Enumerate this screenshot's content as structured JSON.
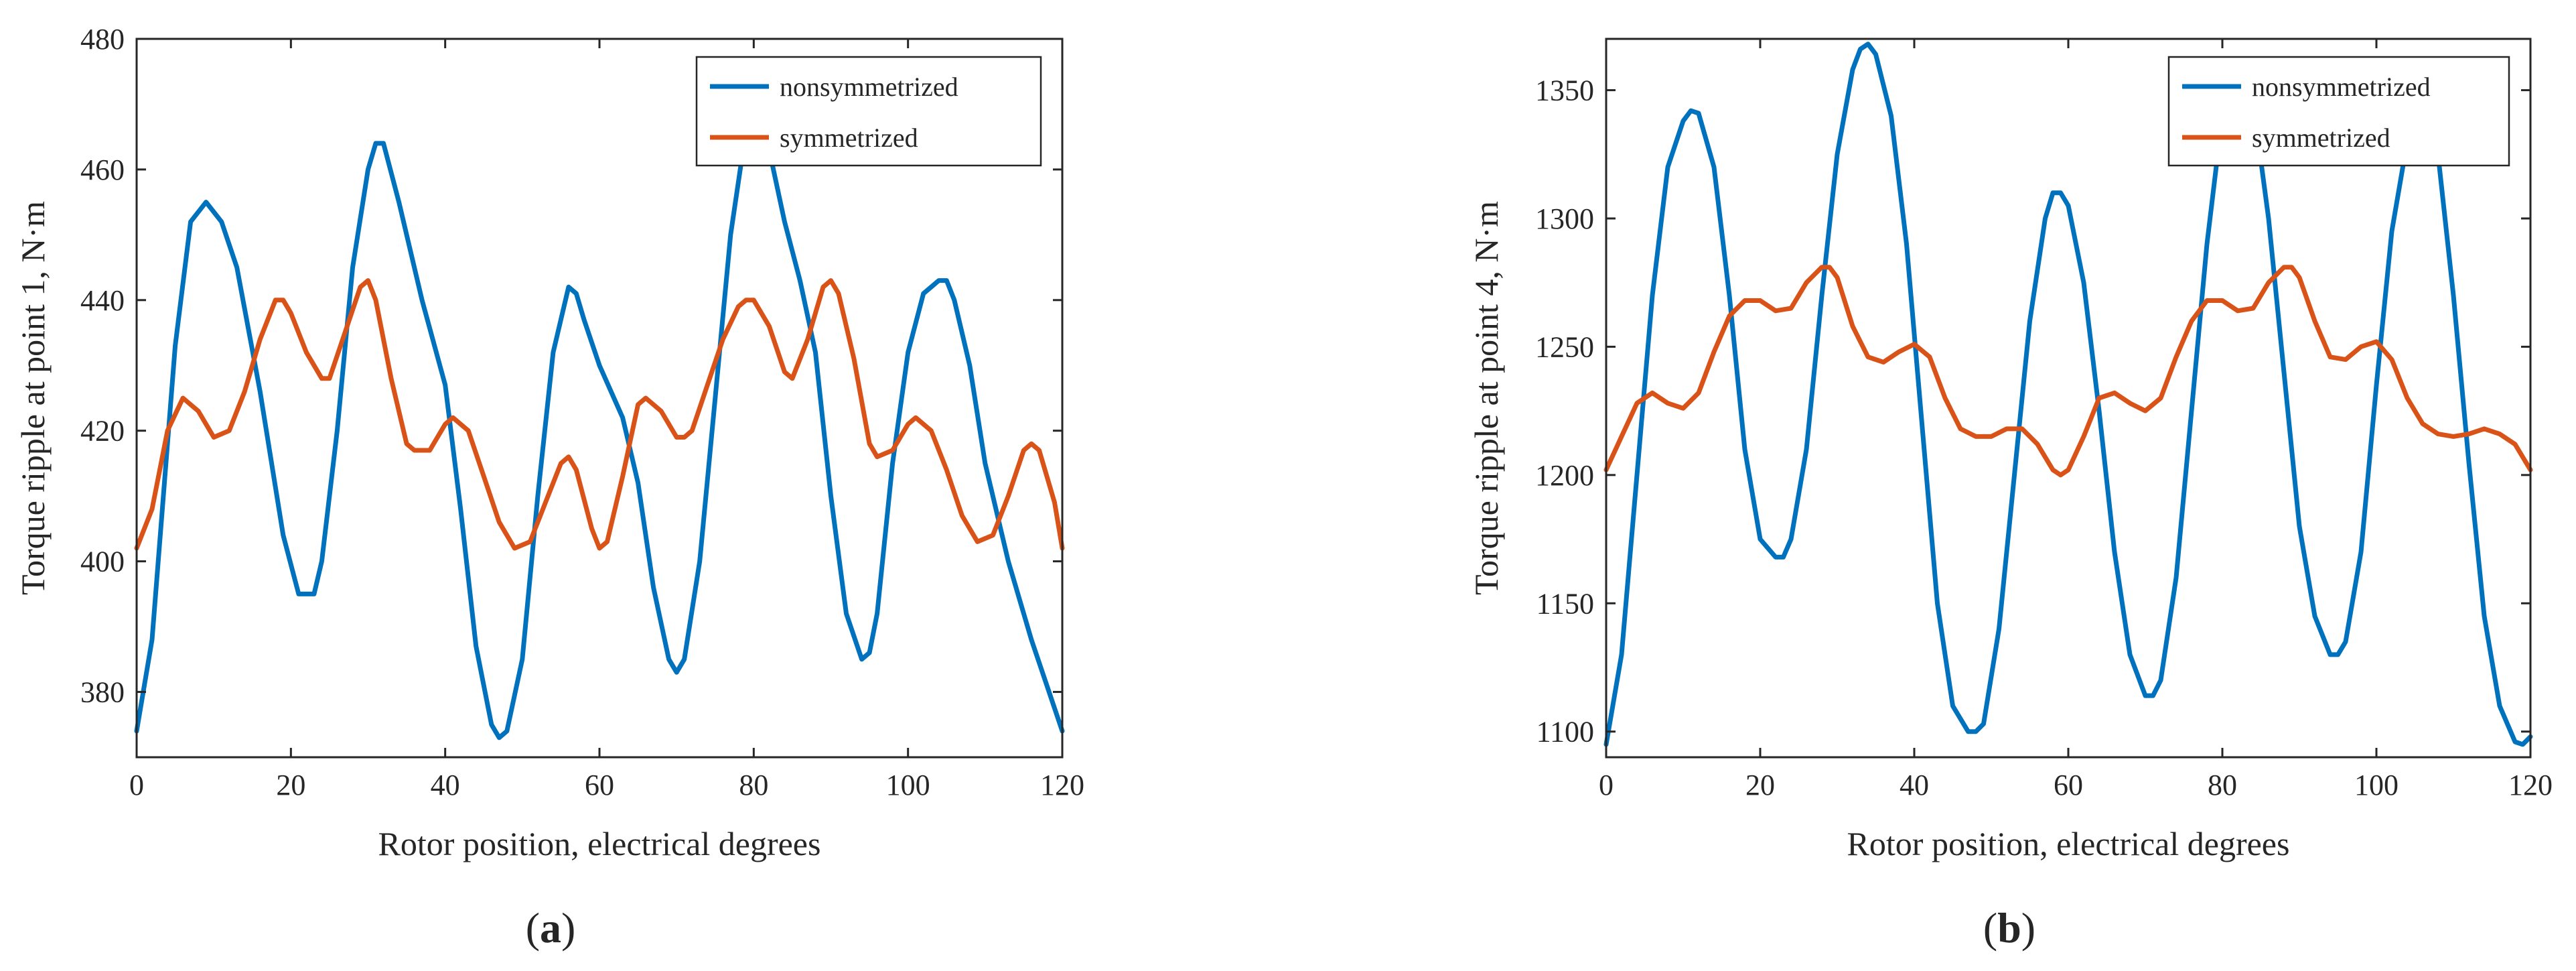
{
  "figure": {
    "panels": [
      {
        "label_open": "(",
        "label_letter": "a",
        "label_close": ")"
      },
      {
        "label_open": "(",
        "label_letter": "b",
        "label_close": ")"
      }
    ]
  },
  "chart_data": [
    {
      "type": "line",
      "xlabel": "Rotor position, electrical degrees",
      "ylabel": "Torque ripple at point 1, N·m",
      "xlim": [
        0,
        120
      ],
      "ylim": [
        370,
        480
      ],
      "xticks": [
        0,
        20,
        40,
        60,
        80,
        100,
        120
      ],
      "yticks": [
        380,
        400,
        420,
        440,
        460,
        480
      ],
      "grid": false,
      "legend_position": "top-right",
      "series": [
        {
          "name": "nonsymmetrized",
          "color": "#0072BD",
          "x": [
            0,
            2,
            5,
            7,
            9,
            11,
            13,
            16,
            19,
            21,
            23,
            24,
            26,
            28,
            30,
            31,
            32,
            34,
            37,
            40,
            42,
            44,
            46,
            47,
            48,
            50,
            52,
            54,
            56,
            57,
            58,
            60,
            63,
            65,
            67,
            69,
            70,
            71,
            73,
            75,
            77,
            79,
            81,
            82,
            84,
            86,
            88,
            90,
            92,
            94,
            95,
            96,
            98,
            100,
            102,
            104,
            105,
            106,
            108,
            110,
            113,
            116,
            120
          ],
          "y": [
            374,
            388,
            433,
            452,
            455,
            452,
            445,
            426,
            404,
            395,
            395,
            400,
            420,
            445,
            460,
            464,
            464,
            455,
            440,
            427,
            408,
            387,
            375,
            373,
            374,
            385,
            410,
            432,
            442,
            441,
            437,
            430,
            422,
            412,
            396,
            385,
            383,
            385,
            400,
            425,
            450,
            466,
            468,
            463,
            452,
            443,
            432,
            410,
            392,
            385,
            386,
            392,
            415,
            432,
            441,
            443,
            443,
            440,
            430,
            415,
            400,
            388,
            374
          ]
        },
        {
          "name": "symmetrized",
          "color": "#D95319",
          "x": [
            0,
            2,
            4,
            6,
            8,
            10,
            12,
            14,
            16,
            18,
            19,
            20,
            22,
            24,
            25,
            27,
            29,
            30,
            31,
            33,
            35,
            36,
            38,
            40,
            41,
            43,
            45,
            47,
            49,
            51,
            53,
            55,
            56,
            57,
            59,
            60,
            61,
            63,
            65,
            66,
            68,
            70,
            71,
            72,
            74,
            76,
            78,
            79,
            80,
            82,
            84,
            85,
            87,
            89,
            90,
            91,
            93,
            95,
            96,
            98,
            100,
            101,
            103,
            105,
            107,
            109,
            111,
            113,
            115,
            116,
            117,
            119,
            120
          ],
          "y": [
            402,
            408,
            420,
            425,
            423,
            419,
            420,
            426,
            434,
            440,
            440,
            438,
            432,
            428,
            428,
            435,
            442,
            443,
            440,
            428,
            418,
            417,
            417,
            421,
            422,
            420,
            413,
            406,
            402,
            403,
            409,
            415,
            416,
            414,
            405,
            402,
            403,
            413,
            424,
            425,
            423,
            419,
            419,
            420,
            427,
            434,
            439,
            440,
            440,
            436,
            429,
            428,
            434,
            442,
            443,
            441,
            431,
            418,
            416,
            417,
            421,
            422,
            420,
            414,
            407,
            403,
            404,
            410,
            417,
            418,
            417,
            409,
            402
          ]
        }
      ]
    },
    {
      "type": "line",
      "xlabel": "Rotor position, electrical degrees",
      "ylabel": "Torque ripple at point 4, N·m",
      "xlim": [
        0,
        120
      ],
      "ylim": [
        1090,
        1370
      ],
      "xticks": [
        0,
        20,
        40,
        60,
        80,
        100,
        120
      ],
      "yticks": [
        1100,
        1150,
        1200,
        1250,
        1300,
        1350
      ],
      "grid": false,
      "legend_position": "top-right",
      "series": [
        {
          "name": "nonsymmetrized",
          "color": "#0072BD",
          "x": [
            0,
            2,
            4,
            6,
            8,
            10,
            11,
            12,
            14,
            16,
            18,
            20,
            22,
            23,
            24,
            26,
            28,
            30,
            32,
            33,
            34,
            35,
            37,
            39,
            41,
            43,
            45,
            47,
            48,
            49,
            51,
            53,
            55,
            57,
            58,
            59,
            60,
            62,
            64,
            66,
            68,
            70,
            71,
            72,
            74,
            76,
            78,
            80,
            81,
            82,
            84,
            86,
            88,
            90,
            92,
            94,
            95,
            96,
            98,
            100,
            102,
            104,
            105,
            106,
            108,
            110,
            112,
            114,
            116,
            118,
            119,
            120
          ],
          "y": [
            1095,
            1130,
            1200,
            1270,
            1320,
            1338,
            1342,
            1341,
            1320,
            1270,
            1210,
            1175,
            1168,
            1168,
            1175,
            1210,
            1270,
            1325,
            1358,
            1366,
            1368,
            1364,
            1340,
            1290,
            1220,
            1150,
            1110,
            1100,
            1100,
            1103,
            1140,
            1200,
            1260,
            1300,
            1310,
            1310,
            1305,
            1275,
            1225,
            1170,
            1130,
            1114,
            1114,
            1120,
            1160,
            1225,
            1290,
            1340,
            1355,
            1360,
            1345,
            1300,
            1240,
            1180,
            1145,
            1130,
            1130,
            1135,
            1170,
            1235,
            1295,
            1330,
            1340,
            1340,
            1325,
            1270,
            1205,
            1145,
            1110,
            1096,
            1095,
            1098
          ]
        },
        {
          "name": "symmetrized",
          "color": "#D95319",
          "x": [
            0,
            2,
            4,
            6,
            8,
            10,
            12,
            14,
            16,
            18,
            20,
            22,
            24,
            26,
            28,
            29,
            30,
            32,
            34,
            36,
            38,
            40,
            42,
            44,
            46,
            48,
            50,
            52,
            54,
            56,
            58,
            59,
            60,
            62,
            64,
            66,
            68,
            70,
            72,
            74,
            76,
            78,
            80,
            82,
            84,
            86,
            88,
            89,
            90,
            92,
            94,
            96,
            98,
            100,
            102,
            104,
            106,
            108,
            110,
            112,
            114,
            116,
            118,
            120
          ],
          "y": [
            1202,
            1215,
            1228,
            1232,
            1228,
            1226,
            1232,
            1248,
            1262,
            1268,
            1268,
            1264,
            1265,
            1275,
            1281,
            1281,
            1277,
            1258,
            1246,
            1244,
            1248,
            1251,
            1246,
            1230,
            1218,
            1215,
            1215,
            1218,
            1218,
            1212,
            1202,
            1200,
            1202,
            1215,
            1230,
            1232,
            1228,
            1225,
            1230,
            1246,
            1260,
            1268,
            1268,
            1264,
            1265,
            1275,
            1281,
            1281,
            1277,
            1260,
            1246,
            1245,
            1250,
            1252,
            1245,
            1230,
            1220,
            1216,
            1215,
            1216,
            1218,
            1216,
            1212,
            1202
          ]
        }
      ]
    }
  ]
}
